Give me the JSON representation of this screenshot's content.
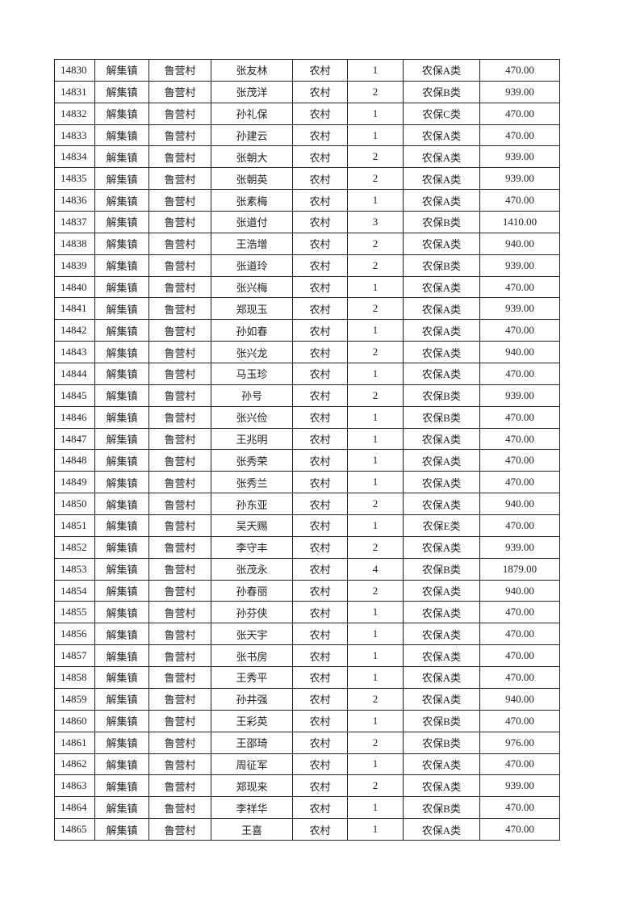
{
  "table": {
    "rows": [
      [
        "14830",
        "解集镇",
        "鲁营村",
        "张友林",
        "农村",
        "1",
        "农保A类",
        "470.00"
      ],
      [
        "14831",
        "解集镇",
        "鲁营村",
        "张茂洋",
        "农村",
        "2",
        "农保B类",
        "939.00"
      ],
      [
        "14832",
        "解集镇",
        "鲁营村",
        "孙礼保",
        "农村",
        "1",
        "农保C类",
        "470.00"
      ],
      [
        "14833",
        "解集镇",
        "鲁营村",
        "孙建云",
        "农村",
        "1",
        "农保A类",
        "470.00"
      ],
      [
        "14834",
        "解集镇",
        "鲁营村",
        "张朝大",
        "农村",
        "2",
        "农保A类",
        "939.00"
      ],
      [
        "14835",
        "解集镇",
        "鲁营村",
        "张朝英",
        "农村",
        "2",
        "农保A类",
        "939.00"
      ],
      [
        "14836",
        "解集镇",
        "鲁营村",
        "张素梅",
        "农村",
        "1",
        "农保A类",
        "470.00"
      ],
      [
        "14837",
        "解集镇",
        "鲁营村",
        "张道付",
        "农村",
        "3",
        "农保B类",
        "1410.00"
      ],
      [
        "14838",
        "解集镇",
        "鲁营村",
        "王浩增",
        "农村",
        "2",
        "农保A类",
        "940.00"
      ],
      [
        "14839",
        "解集镇",
        "鲁营村",
        "张道玲",
        "农村",
        "2",
        "农保B类",
        "939.00"
      ],
      [
        "14840",
        "解集镇",
        "鲁营村",
        "张兴梅",
        "农村",
        "1",
        "农保A类",
        "470.00"
      ],
      [
        "14841",
        "解集镇",
        "鲁营村",
        "郑现玉",
        "农村",
        "2",
        "农保A类",
        "939.00"
      ],
      [
        "14842",
        "解集镇",
        "鲁营村",
        "孙如春",
        "农村",
        "1",
        "农保A类",
        "470.00"
      ],
      [
        "14843",
        "解集镇",
        "鲁营村",
        "张兴龙",
        "农村",
        "2",
        "农保A类",
        "940.00"
      ],
      [
        "14844",
        "解集镇",
        "鲁营村",
        "马玉珍",
        "农村",
        "1",
        "农保A类",
        "470.00"
      ],
      [
        "14845",
        "解集镇",
        "鲁营村",
        "孙号",
        "农村",
        "2",
        "农保B类",
        "939.00"
      ],
      [
        "14846",
        "解集镇",
        "鲁营村",
        "张兴俭",
        "农村",
        "1",
        "农保B类",
        "470.00"
      ],
      [
        "14847",
        "解集镇",
        "鲁营村",
        "王兆明",
        "农村",
        "1",
        "农保A类",
        "470.00"
      ],
      [
        "14848",
        "解集镇",
        "鲁营村",
        "张秀荣",
        "农村",
        "1",
        "农保A类",
        "470.00"
      ],
      [
        "14849",
        "解集镇",
        "鲁营村",
        "张秀兰",
        "农村",
        "1",
        "农保A类",
        "470.00"
      ],
      [
        "14850",
        "解集镇",
        "鲁营村",
        "孙东亚",
        "农村",
        "2",
        "农保A类",
        "940.00"
      ],
      [
        "14851",
        "解集镇",
        "鲁营村",
        "吴天赐",
        "农村",
        "1",
        "农保E类",
        "470.00"
      ],
      [
        "14852",
        "解集镇",
        "鲁营村",
        "李守丰",
        "农村",
        "2",
        "农保A类",
        "939.00"
      ],
      [
        "14853",
        "解集镇",
        "鲁营村",
        "张茂永",
        "农村",
        "4",
        "农保B类",
        "1879.00"
      ],
      [
        "14854",
        "解集镇",
        "鲁营村",
        "孙春丽",
        "农村",
        "2",
        "农保A类",
        "940.00"
      ],
      [
        "14855",
        "解集镇",
        "鲁营村",
        "孙芬侠",
        "农村",
        "1",
        "农保A类",
        "470.00"
      ],
      [
        "14856",
        "解集镇",
        "鲁营村",
        "张天宇",
        "农村",
        "1",
        "农保A类",
        "470.00"
      ],
      [
        "14857",
        "解集镇",
        "鲁营村",
        "张书房",
        "农村",
        "1",
        "农保A类",
        "470.00"
      ],
      [
        "14858",
        "解集镇",
        "鲁营村",
        "王秀平",
        "农村",
        "1",
        "农保A类",
        "470.00"
      ],
      [
        "14859",
        "解集镇",
        "鲁营村",
        "孙井强",
        "农村",
        "2",
        "农保A类",
        "940.00"
      ],
      [
        "14860",
        "解集镇",
        "鲁营村",
        "王彩英",
        "农村",
        "1",
        "农保B类",
        "470.00"
      ],
      [
        "14861",
        "解集镇",
        "鲁营村",
        "王邵琦",
        "农村",
        "2",
        "农保B类",
        "976.00"
      ],
      [
        "14862",
        "解集镇",
        "鲁营村",
        "周征军",
        "农村",
        "1",
        "农保A类",
        "470.00"
      ],
      [
        "14863",
        "解集镇",
        "鲁营村",
        "郑现来",
        "农村",
        "2",
        "农保A类",
        "939.00"
      ],
      [
        "14864",
        "解集镇",
        "鲁营村",
        "李祥华",
        "农村",
        "1",
        "农保B类",
        "470.00"
      ],
      [
        "14865",
        "解集镇",
        "鲁营村",
        "王喜",
        "农村",
        "1",
        "农保A类",
        "470.00"
      ]
    ]
  }
}
